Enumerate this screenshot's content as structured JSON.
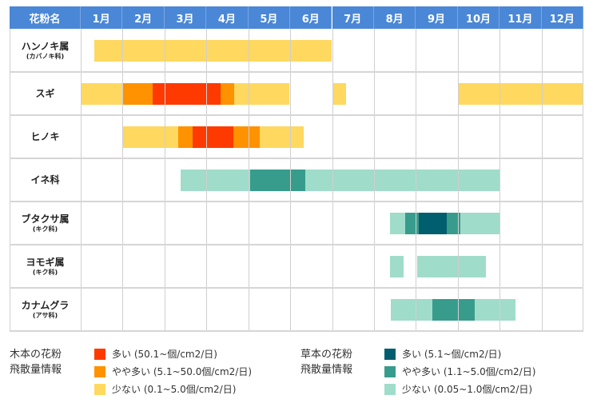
{
  "chart_data": {
    "type": "gantt",
    "header_label": "花粉名",
    "months": [
      "1月",
      "2月",
      "3月",
      "4月",
      "5月",
      "6月",
      "7月",
      "8月",
      "9月",
      "10月",
      "11月",
      "12月"
    ],
    "levels": {
      "tree": {
        "high": "#ff3a00",
        "mid": "#ff9200",
        "low": "#ffd860"
      },
      "grass": {
        "high": "#005e6f",
        "mid": "#389c8c",
        "low": "#a0dcca"
      }
    },
    "rows": [
      {
        "name": "ハンノキ属",
        "sub": "(カバノキ科)",
        "type": "tree",
        "segments": [
          [
            0.32,
            6.0,
            "low"
          ]
        ]
      },
      {
        "name": "スギ",
        "sub": "",
        "type": "tree",
        "segments": [
          [
            0,
            1.0,
            "low"
          ],
          [
            1.0,
            1.72,
            "mid"
          ],
          [
            1.72,
            3.34,
            "high"
          ],
          [
            3.34,
            3.66,
            "mid"
          ],
          [
            3.66,
            4.98,
            "low"
          ],
          [
            6.0,
            6.34,
            "low"
          ],
          [
            9.0,
            12.0,
            "low"
          ]
        ]
      },
      {
        "name": "ヒノキ",
        "sub": "",
        "type": "tree",
        "segments": [
          [
            1.0,
            2.33,
            "low"
          ],
          [
            2.33,
            2.67,
            "mid"
          ],
          [
            2.67,
            3.65,
            "high"
          ],
          [
            3.65,
            4.27,
            "mid"
          ],
          [
            4.27,
            5.32,
            "low"
          ]
        ]
      },
      {
        "name": "イネ科",
        "sub": "",
        "type": "grass",
        "segments": [
          [
            2.38,
            4.04,
            "low"
          ],
          [
            4.04,
            5.37,
            "mid"
          ],
          [
            5.37,
            10.0,
            "low"
          ]
        ]
      },
      {
        "name": "ブタクサ属",
        "sub": "(キク科)",
        "type": "grass",
        "segments": [
          [
            7.38,
            7.75,
            "low"
          ],
          [
            7.75,
            8.07,
            "mid"
          ],
          [
            8.07,
            8.74,
            "high"
          ],
          [
            8.74,
            9.07,
            "mid"
          ],
          [
            9.07,
            10.0,
            "low"
          ]
        ]
      },
      {
        "name": "ヨモギ属",
        "sub": "(キク科)",
        "type": "grass",
        "segments": [
          [
            7.38,
            7.71,
            "low"
          ],
          [
            8.03,
            9.68,
            "low"
          ]
        ]
      },
      {
        "name": "カナムグラ",
        "sub": "(アサ科)",
        "type": "grass",
        "segments": [
          [
            7.4,
            8.4,
            "low"
          ],
          [
            8.4,
            9.41,
            "mid"
          ],
          [
            9.41,
            10.38,
            "low"
          ]
        ]
      }
    ]
  },
  "legend": {
    "tree": {
      "title1": "木本の花粉",
      "title2": "飛散量情報",
      "items": [
        {
          "level": "high",
          "label": "多い (50.1~個/cm2/日)"
        },
        {
          "level": "mid",
          "label": "やや多い (5.1~50.0個/cm2/日)"
        },
        {
          "level": "low",
          "label": "少ない (0.1~5.0個/cm2/日)"
        }
      ]
    },
    "grass": {
      "title1": "草本の花粉",
      "title2": "飛散量情報",
      "items": [
        {
          "level": "high",
          "label": "多い (5.1~個/cm2/日)"
        },
        {
          "level": "mid",
          "label": "やや多い (1.1~5.0個/cm2/日)"
        },
        {
          "level": "low",
          "label": "少ない (0.05~1.0個/cm2/日)"
        }
      ]
    }
  }
}
